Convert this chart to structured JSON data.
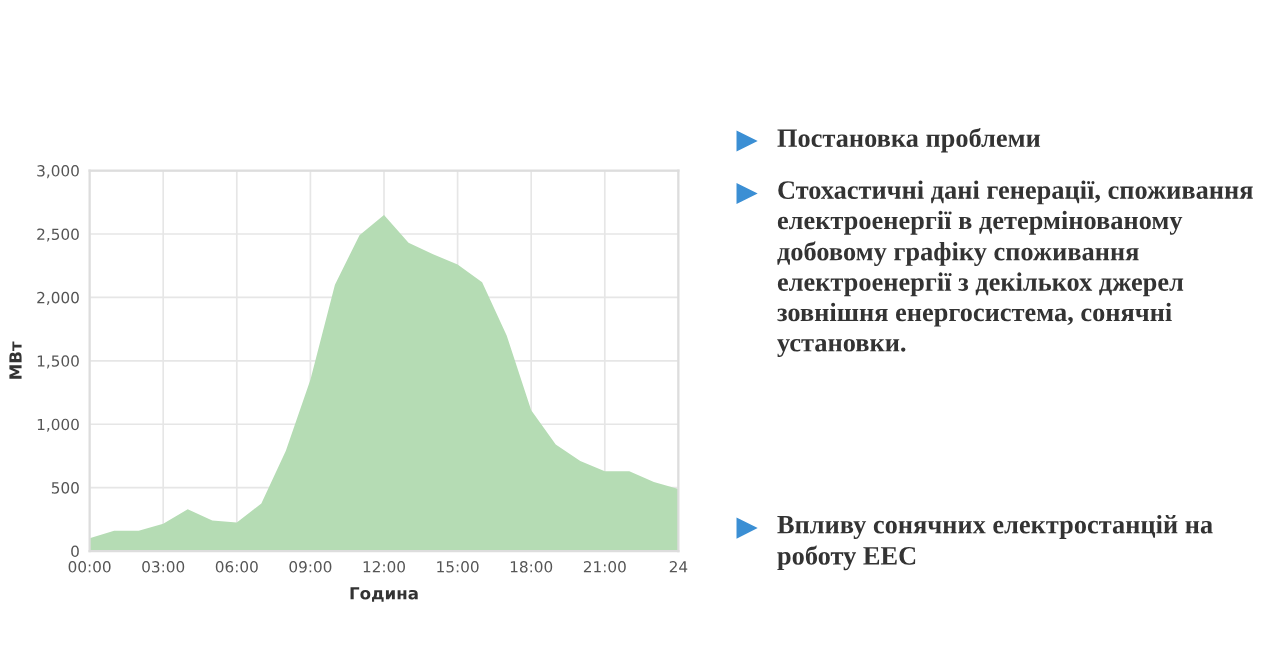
{
  "chart_data": {
    "type": "area",
    "xlabel": "Година",
    "ylabel": "МВт",
    "x": [
      0,
      1,
      2,
      3,
      4,
      5,
      6,
      7,
      8,
      9,
      10,
      11,
      12,
      13,
      14,
      15,
      16,
      17,
      18,
      19,
      20,
      21,
      22,
      23,
      24
    ],
    "series": [
      {
        "color": "#b5dcb4",
        "values": [
          100,
          160,
          160,
          215,
          330,
          240,
          225,
          375,
          790,
          1350,
          2100,
          2490,
          2650,
          2430,
          2340,
          2260,
          2120,
          1700,
          1110,
          840,
          710,
          630,
          630,
          545,
          490
        ]
      }
    ],
    "xlim": [
      0,
      24
    ],
    "xticks": [
      {
        "value": 0,
        "label": "00:00"
      },
      {
        "value": 3,
        "label": "03:00"
      },
      {
        "value": 6,
        "label": "06:00"
      },
      {
        "value": 9,
        "label": "09:00"
      },
      {
        "value": 12,
        "label": "12:00"
      },
      {
        "value": 15,
        "label": "15:00"
      },
      {
        "value": 18,
        "label": "18:00"
      },
      {
        "value": 21,
        "label": "21:00"
      },
      {
        "value": 24,
        "label": "24"
      }
    ],
    "ylim": [
      0,
      3000
    ],
    "yticks": [
      0,
      500,
      {
        "value": 1000,
        "label": "1,000"
      },
      {
        "value": 1500,
        "label": "1,500"
      },
      {
        "value": 2000,
        "label": "2,000"
      },
      {
        "value": 2500,
        "label": "2,500"
      },
      {
        "value": 3000,
        "label": "3,000"
      }
    ],
    "grid": true,
    "annotations": [
      "Постановка проблеми",
      "Стохастичні дані генерації, споживання електроенергії в детермінованому добовому графіку споживання електроенергії з декількох джерел зовнішня енергосистема, сонячні установки.",
      "Впливу сонячних електростанцій на роботу ЕЕС"
    ]
  }
}
